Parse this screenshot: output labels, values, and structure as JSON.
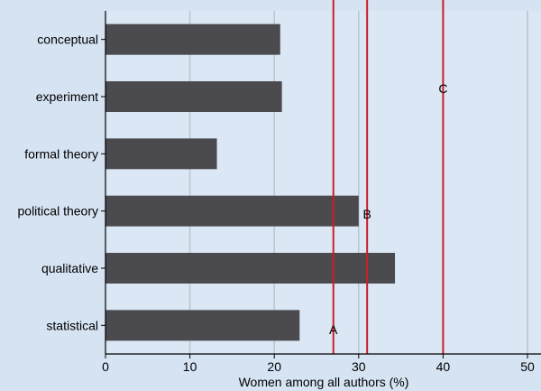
{
  "chart_data": {
    "type": "bar",
    "orientation": "horizontal",
    "categories": [
      "conceptual",
      "experiment",
      "formal theory",
      "political theory",
      "qualitative",
      "statistical"
    ],
    "values": [
      20.7,
      20.9,
      13.2,
      30.0,
      34.3,
      23.0
    ],
    "title": "",
    "xlabel": "Women among all authors (%)",
    "ylabel": "",
    "xlim": [
      0,
      50
    ],
    "xticks": [
      "0",
      "10",
      "20",
      "30",
      "40",
      "50"
    ],
    "grid": true,
    "reference_lines": [
      {
        "label": "A",
        "x": 27.0
      },
      {
        "label": "B",
        "x": 31.0
      },
      {
        "label": "C",
        "x": 40.0
      }
    ],
    "colors": {
      "bar": "#4a4a4f",
      "reference_line": "#cc1f26",
      "plot_background": "#dbe7f4",
      "page_background": "#d5e3f2",
      "grid": "#b9c4cf"
    }
  }
}
